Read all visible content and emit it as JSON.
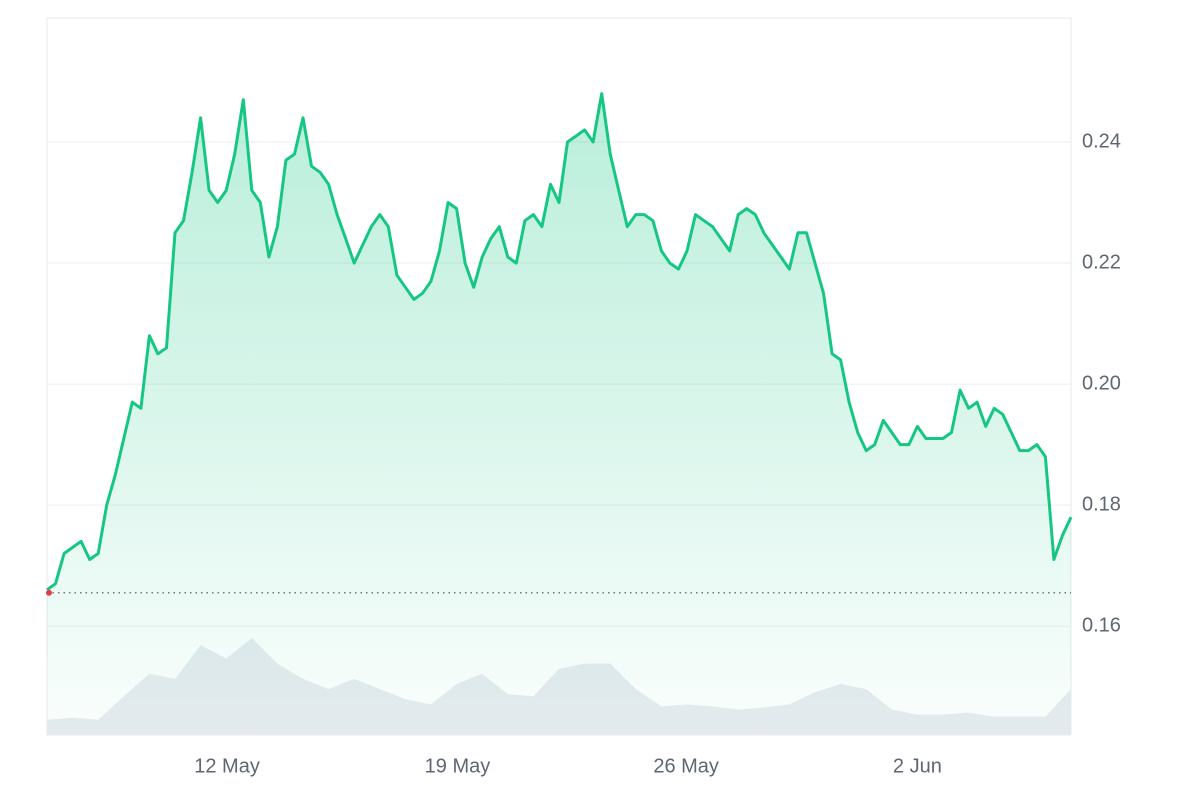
{
  "chart_data": {
    "type": "line",
    "values": [
      0.166,
      0.167,
      0.172,
      0.173,
      0.174,
      0.171,
      0.172,
      0.18,
      0.185,
      0.191,
      0.197,
      0.196,
      0.208,
      0.205,
      0.206,
      0.225,
      0.227,
      0.235,
      0.244,
      0.232,
      0.23,
      0.232,
      0.238,
      0.247,
      0.232,
      0.23,
      0.221,
      0.226,
      0.237,
      0.238,
      0.244,
      0.236,
      0.235,
      0.233,
      0.228,
      0.224,
      0.22,
      0.223,
      0.226,
      0.228,
      0.226,
      0.218,
      0.216,
      0.214,
      0.215,
      0.217,
      0.222,
      0.23,
      0.229,
      0.22,
      0.216,
      0.221,
      0.224,
      0.226,
      0.221,
      0.22,
      0.227,
      0.228,
      0.226,
      0.233,
      0.23,
      0.24,
      0.241,
      0.242,
      0.24,
      0.248,
      0.238,
      0.232,
      0.226,
      0.228,
      0.228,
      0.227,
      0.222,
      0.22,
      0.219,
      0.222,
      0.228,
      0.227,
      0.226,
      0.224,
      0.222,
      0.228,
      0.229,
      0.228,
      0.225,
      0.223,
      0.221,
      0.219,
      0.225,
      0.225,
      0.22,
      0.215,
      0.205,
      0.204,
      0.197,
      0.192,
      0.189,
      0.19,
      0.194,
      0.192,
      0.19,
      0.19,
      0.193,
      0.191,
      0.191,
      0.191,
      0.192,
      0.199,
      0.196,
      0.197,
      0.193,
      0.196,
      0.195,
      0.192,
      0.189,
      0.189,
      0.19,
      0.188,
      0.171,
      0.175,
      0.178
    ],
    "color": "#16c784",
    "ylim": [
      0.142,
      0.2605
    ],
    "yticks": [
      0.16,
      0.18,
      {
        "value": 0.2,
        "label": "0.20"
      },
      0.22,
      0.24
    ],
    "xlim": [
      0,
      120
    ],
    "xticks": [
      {
        "value": 21.1,
        "label": "12 May"
      },
      {
        "value": 48.1,
        "label": "19 May"
      },
      {
        "value": 74.9,
        "label": "26 May"
      },
      {
        "value": 102.0,
        "label": "2 Jun"
      }
    ],
    "grid": true,
    "baseline": 0.1655,
    "volume": {
      "values": [
        15,
        17,
        15,
        38,
        60,
        55,
        88,
        75,
        95,
        70,
        55,
        45,
        55,
        45,
        35,
        30,
        50,
        60,
        40,
        38,
        65,
        70,
        70,
        45,
        28,
        30,
        28,
        25,
        27,
        30,
        42,
        50,
        45,
        25,
        20,
        20,
        22,
        18,
        18,
        18,
        45
      ],
      "color": "#e8ebf0",
      "ylim": [
        0,
        100
      ]
    }
  }
}
